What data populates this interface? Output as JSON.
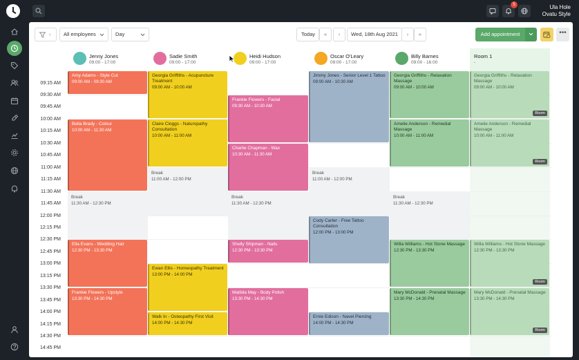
{
  "user": {
    "name": "Ula Hole",
    "business": "Ovatu Style"
  },
  "notifications": {
    "count": "5"
  },
  "toolbar": {
    "employee_filter": "All employees",
    "view": "Day",
    "today": "Today",
    "first": "«",
    "prev": "‹",
    "date": "Wed, 18th Aug 2021",
    "next": "›",
    "last": "»",
    "add_appointment": "Add appointment",
    "more": "•••"
  },
  "columns": [
    {
      "name": "Jenny Jones",
      "hours": "09:00 - 17:00",
      "avatar_color": "#5bbfb5"
    },
    {
      "name": "Sadie Smith",
      "hours": "09:00 - 17:00",
      "avatar_color": "#e26e9e"
    },
    {
      "name": "Heidi Hudson",
      "hours": "09:00 - 17:00",
      "avatar_color": "#f1cf1e"
    },
    {
      "name": "Oscar O'Leary",
      "hours": "09:00 - 17:00",
      "avatar_color": "#f5a623"
    },
    {
      "name": "Billy Barnes",
      "hours": "09:00 - 16:00",
      "avatar_color": "#5aa86a"
    },
    {
      "name": "Room 1",
      "hours": "-"
    }
  ],
  "times": [
    "09:15 AM",
    "09:30 AM",
    "09:45 AM",
    "10:00 AM",
    "10:15 AM",
    "10:30 AM",
    "10:45 AM",
    "11:00 AM",
    "11:15 AM",
    "11:30 AM",
    "11:45 AM",
    "12:00 PM",
    "12:15 PM",
    "12:30 PM",
    "12:45 PM",
    "13:00 PM",
    "13:15 PM",
    "13:30 PM",
    "13:45 PM",
    "14:00 PM",
    "14:15 PM",
    "14:30 PM",
    "14:45 PM"
  ],
  "breaks": [
    {
      "title": "Break",
      "time": "11:30 AM - 12:30 PM"
    },
    {
      "title": "Break",
      "time": "11:00 AM - 12:00 PM"
    },
    {
      "title": "Break",
      "time": "11:30 AM - 12:30 PM"
    },
    {
      "title": "Break",
      "time": "11:00 AM - 12:00 PM"
    },
    {
      "title": "Break",
      "time": "11:30 AM - 12:30 PM"
    }
  ],
  "appointments": [
    {
      "title": "Amy Adams - Style Cut",
      "time": "09:00 AM - 09:30 AM"
    },
    {
      "title": "Bella Brady - Colour",
      "time": "10:00 AM - 11:30 AM"
    },
    {
      "title": "Ella Evans - Wedding Hair",
      "time": "12:30 PM - 13:30 PM"
    },
    {
      "title": "Frankie Flowers - Upstyle",
      "time": "13:30 PM - 14:30 PM"
    },
    {
      "title": "Georgia Griffiths - Acupuncture Treatment",
      "time": "09:00 AM - 10:00 AM"
    },
    {
      "title": "Claire Cloggs - Naturopathy Consultation",
      "time": "10:00 AM - 11:00 AM"
    },
    {
      "title": "Ewan Ellis - Homeopathy Treatment",
      "time": "13:00 PM - 14:00 PM"
    },
    {
      "title": "Walk In - Osteopathy First Visit",
      "time": "14:00 PM - 14:30 PM"
    },
    {
      "title": "Frankie Flowers - Facial",
      "time": "09:30 AM - 10:30 AM"
    },
    {
      "title": "Charlie Chapman - Wax",
      "time": "10:30 AM - 11:30 AM"
    },
    {
      "title": "Shelly Shipman - Nails",
      "time": "12:30 PM - 13:30 PM"
    },
    {
      "title": "Matilda May - Body Polish",
      "time": "13:30 PM - 14:30 PM"
    },
    {
      "title": "Jimmy Jones - Senior Level 1 Tattoo",
      "time": "09:00 AM - 10:30 AM"
    },
    {
      "title": "Cody Carter - Free Tattoo Consultation",
      "time": "12:00 PM - 13:00 PM"
    },
    {
      "title": "Ernie Edison - Navel Piercing",
      "time": "14:00 PM - 14:30 PM"
    },
    {
      "title": "Georgia Griffiths - Relaxation Massage",
      "time": "09:00 AM - 10:00 AM"
    },
    {
      "title": "Amelie Anderson - Remedial Massage",
      "time": "10:00 AM - 11:00 AM"
    },
    {
      "title": "Willa Williams - Hot Stone Massage",
      "time": "12:30 PM - 13:30 PM"
    },
    {
      "title": "Mary McDonald - Prenatal Massage",
      "time": "13:30 PM - 14:30 PM"
    },
    {
      "title": "Georgia Griffiths - Relaxation Massage",
      "time": "09:00 AM - 10:00 AM",
      "tag": "Room"
    },
    {
      "title": "Amelie Anderson - Remedial Massage",
      "time": "10:00 AM - 11:00 AM",
      "tag": "Room"
    },
    {
      "title": "Willa Williams - Hot Stone Massage",
      "time": "12:30 PM - 13:30 PM",
      "tag": "Room"
    },
    {
      "title": "Mary McDonald - Prenatal Massage",
      "time": "13:30 PM - 14:30 PM",
      "tag": "Room"
    }
  ]
}
